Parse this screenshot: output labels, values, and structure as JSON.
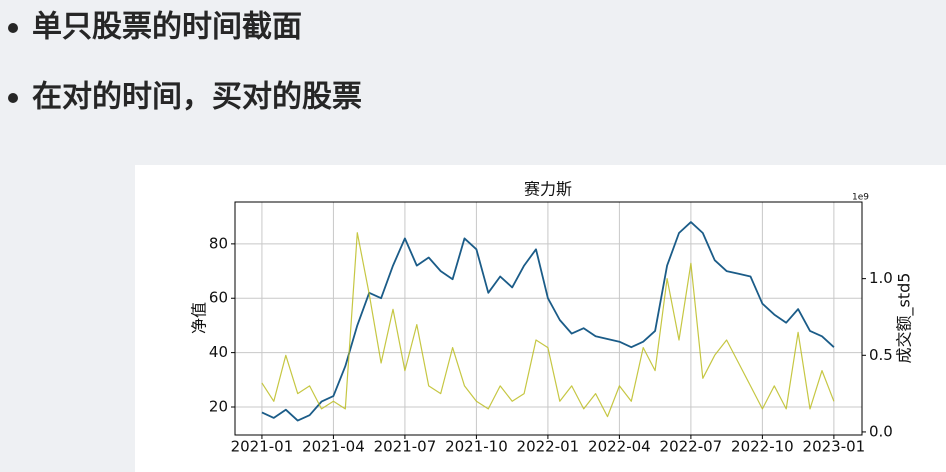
{
  "slide": {
    "bullets": [
      "单只股票的时间截面",
      "在对的时间，买对的股票"
    ]
  },
  "chart_data": {
    "type": "line",
    "title": "赛力斯",
    "y_label": "净值",
    "y2_label": "成交额_std5",
    "y2_offset_label": "1e9",
    "x": [
      0,
      0.5,
      1,
      1.5,
      2,
      2.5,
      3,
      3.5,
      4,
      4.5,
      5,
      5.5,
      6,
      6.5,
      7,
      7.5,
      8,
      8.5,
      9,
      9.5,
      10,
      10.5,
      11,
      11.5,
      12,
      12.5,
      13,
      13.5,
      14,
      14.5,
      15,
      15.5,
      16,
      16.5,
      17,
      17.5,
      18,
      18.5,
      19,
      19.5,
      20,
      20.5,
      21,
      21.5,
      22,
      22.5,
      23,
      23.5,
      24
    ],
    "xlim": [
      -1.13,
      25.18
    ],
    "xticks": [
      {
        "value": 0,
        "label": "2021-01"
      },
      {
        "value": 3,
        "label": "2021-04"
      },
      {
        "value": 6,
        "label": "2021-07"
      },
      {
        "value": 9,
        "label": "2021-10"
      },
      {
        "value": 12,
        "label": "2022-01"
      },
      {
        "value": 15,
        "label": "2022-04"
      },
      {
        "value": 18,
        "label": "2022-07"
      },
      {
        "value": 21,
        "label": "2022-10"
      },
      {
        "value": 24,
        "label": "2023-01"
      }
    ],
    "ylim": [
      9.7,
      95.4
    ],
    "yticks": [
      20,
      40,
      60,
      80
    ],
    "y2lim": [
      -0.02,
      1.5
    ],
    "y2ticks": [
      {
        "value": 0,
        "label": "0.0"
      },
      0.5,
      {
        "value": 1,
        "label": "1.0"
      }
    ],
    "grid": true,
    "series": [
      {
        "name": "净值",
        "color": "#1b5c88",
        "values": [
          18,
          16,
          19,
          15,
          17,
          22,
          24,
          35,
          50,
          62,
          60,
          72,
          82,
          72,
          75,
          70,
          67,
          82,
          78,
          62,
          68,
          64,
          72,
          78,
          60,
          52,
          47,
          49,
          46,
          45,
          44,
          42,
          44,
          48,
          72,
          84,
          88,
          84,
          74,
          70,
          69,
          68,
          58,
          54,
          51,
          56,
          48,
          46,
          42
        ]
      },
      {
        "name": "成交额_std5",
        "color": "#bcbd22",
        "axis": "y2",
        "values": [
          0.32,
          0.2,
          0.5,
          0.25,
          0.3,
          0.15,
          0.2,
          0.15,
          1.3,
          0.9,
          0.45,
          0.8,
          0.4,
          0.7,
          0.3,
          0.25,
          0.55,
          0.3,
          0.2,
          0.15,
          0.3,
          0.2,
          0.25,
          0.6,
          0.55,
          0.2,
          0.3,
          0.15,
          0.25,
          0.1,
          0.3,
          0.2,
          0.55,
          0.4,
          1.0,
          0.6,
          1.1,
          0.35,
          0.5,
          0.6,
          0.45,
          0.3,
          0.15,
          0.3,
          0.15,
          0.65,
          0.15,
          0.4,
          0.2
        ]
      }
    ]
  }
}
